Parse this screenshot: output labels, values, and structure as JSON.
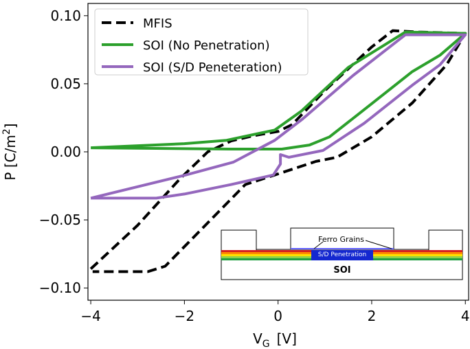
{
  "chart_data": {
    "type": "line",
    "xlabel": [
      "V",
      "G",
      "[V]"
    ],
    "ylabel": [
      "P [C/m",
      "2",
      "]"
    ],
    "xlim": [
      -4.06,
      4.07
    ],
    "ylim": [
      -0.109,
      0.109
    ],
    "xticks": [
      {
        "value": -4,
        "label": "−4"
      },
      {
        "value": -2,
        "label": "−2"
      },
      0,
      2,
      4
    ],
    "yticks": [
      {
        "value": -0.1,
        "label": "−0.10"
      },
      {
        "value": -0.05,
        "label": "−0.05"
      },
      {
        "value": 0,
        "label": "0.00"
      },
      {
        "value": 0.05,
        "label": "0.05"
      },
      {
        "value": 0.1,
        "label": "0.10"
      }
    ],
    "legend": "upper left",
    "series": [
      {
        "name": "MFIS",
        "color": "#000000",
        "dash": true,
        "x": [
          -4,
          -3,
          -2.1,
          -1.5,
          -1.0,
          -0.5,
          0,
          0.3,
          1.0,
          2.0,
          2.45,
          3.0,
          4.0,
          3.6,
          2.87,
          2.0,
          1.26,
          0.81,
          -0.07,
          -0.7,
          -2.41,
          -2.78,
          -3.96
        ],
        "values": [
          -0.086,
          -0.054,
          -0.02,
          0,
          0.008,
          0.012,
          0.015,
          0.02,
          0.045,
          0.077,
          0.089,
          0.088,
          0.087,
          0.064,
          0.036,
          0.011,
          -0.004,
          -0.007,
          -0.017,
          -0.024,
          -0.084,
          -0.088,
          -0.088
        ]
      },
      {
        "name": "SOI (No Penetration)",
        "color": "#2ca02c",
        "dash": false,
        "x": [
          -4,
          -2,
          -1.1,
          -0.07,
          0.5,
          1.5,
          2.72,
          4.0,
          3.46,
          2.87,
          1.84,
          1.1,
          0.67,
          0.08,
          -1.0,
          -4
        ],
        "values": [
          0.003,
          0.006,
          0.0085,
          0.016,
          0.03,
          0.062,
          0.088,
          0.087,
          0.071,
          0.059,
          0.031,
          0.011,
          0.005,
          0.002,
          0.002,
          0.003
        ]
      },
      {
        "name": "SOI (S/D Peneteration)",
        "color": "#9467bd",
        "dash": false,
        "x": [
          -4,
          -1.97,
          -0.95,
          -0.07,
          0.52,
          1.6,
          2.72,
          4.0,
          3.46,
          2.87,
          1.84,
          0.96,
          0.23,
          0.05,
          0.05,
          -0.1,
          -1.0,
          -2.0,
          -2.6,
          -4
        ],
        "values": [
          -0.034,
          -0.017,
          -0.0075,
          0.0085,
          0.024,
          0.056,
          0.086,
          0.086,
          0.064,
          0.049,
          0.021,
          0.001,
          -0.004,
          -0.002,
          -0.009,
          -0.017,
          -0.024,
          -0.031,
          -0.034,
          -0.034
        ]
      }
    ],
    "inset": {
      "labels": [
        "Ferro Grains",
        "S/D Penetration",
        "SOI"
      ]
    }
  }
}
